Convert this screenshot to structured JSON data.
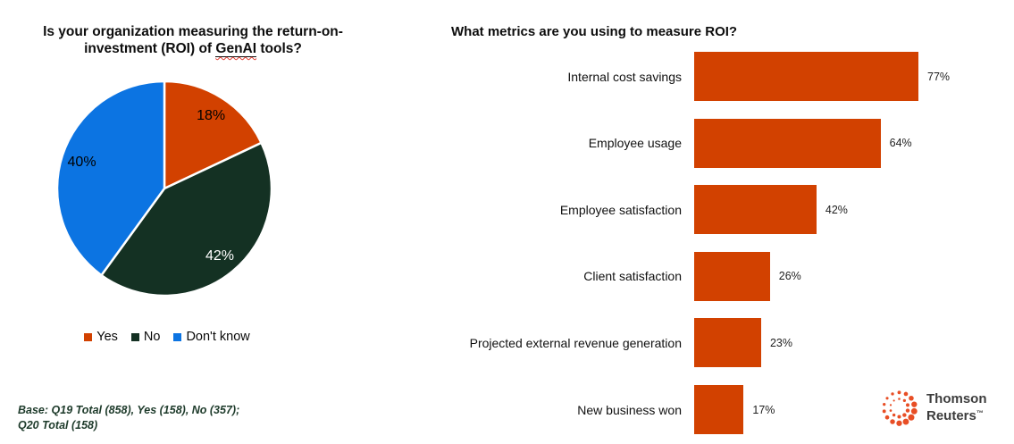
{
  "left_chart_title": {
    "line1": "Is your organization measuring the return-on-",
    "line2_pre": "investment (ROI) of ",
    "genai": "GenAI",
    "line2_post": " tools?"
  },
  "chart_data": [
    {
      "type": "pie",
      "title": "Is your organization measuring the return-on-investment (ROI) of GenAI tools?",
      "labels": [
        "Yes",
        "No",
        "Don't know"
      ],
      "values": [
        18,
        42,
        40
      ],
      "colors": [
        "#D24100",
        "#143123",
        "#0C74E2"
      ],
      "value_label_colors": [
        "#000000",
        "#ffffff",
        "#000000"
      ],
      "value_suffix": "%",
      "start_angle": "12 o'clock",
      "direction": "clockwise",
      "legend_position": "bottom",
      "slice_separator_color": "#ffffff"
    },
    {
      "type": "bar",
      "orientation": "horizontal",
      "title": "What metrics are you using to measure ROI?",
      "categories": [
        "Internal cost savings",
        "Employee usage",
        "Employee satisfaction",
        "Client satisfaction",
        "Projected external revenue generation",
        "New business won"
      ],
      "values": [
        77,
        64,
        42,
        26,
        23,
        17
      ],
      "bar_color": "#D24100",
      "value_suffix": "%",
      "xlim": [
        0,
        100
      ],
      "grid": false,
      "value_labels": "outside-right"
    }
  ],
  "footnote": {
    "line1": "Base: Q19 Total (858), Yes (158), No (357);",
    "line2": "Q20 Total (158)"
  },
  "brand": {
    "line1": "Thomson",
    "line2": "Reuters",
    "trademark": "™",
    "dot_color": "#E84E25",
    "text_color": "#3d3d3d"
  }
}
